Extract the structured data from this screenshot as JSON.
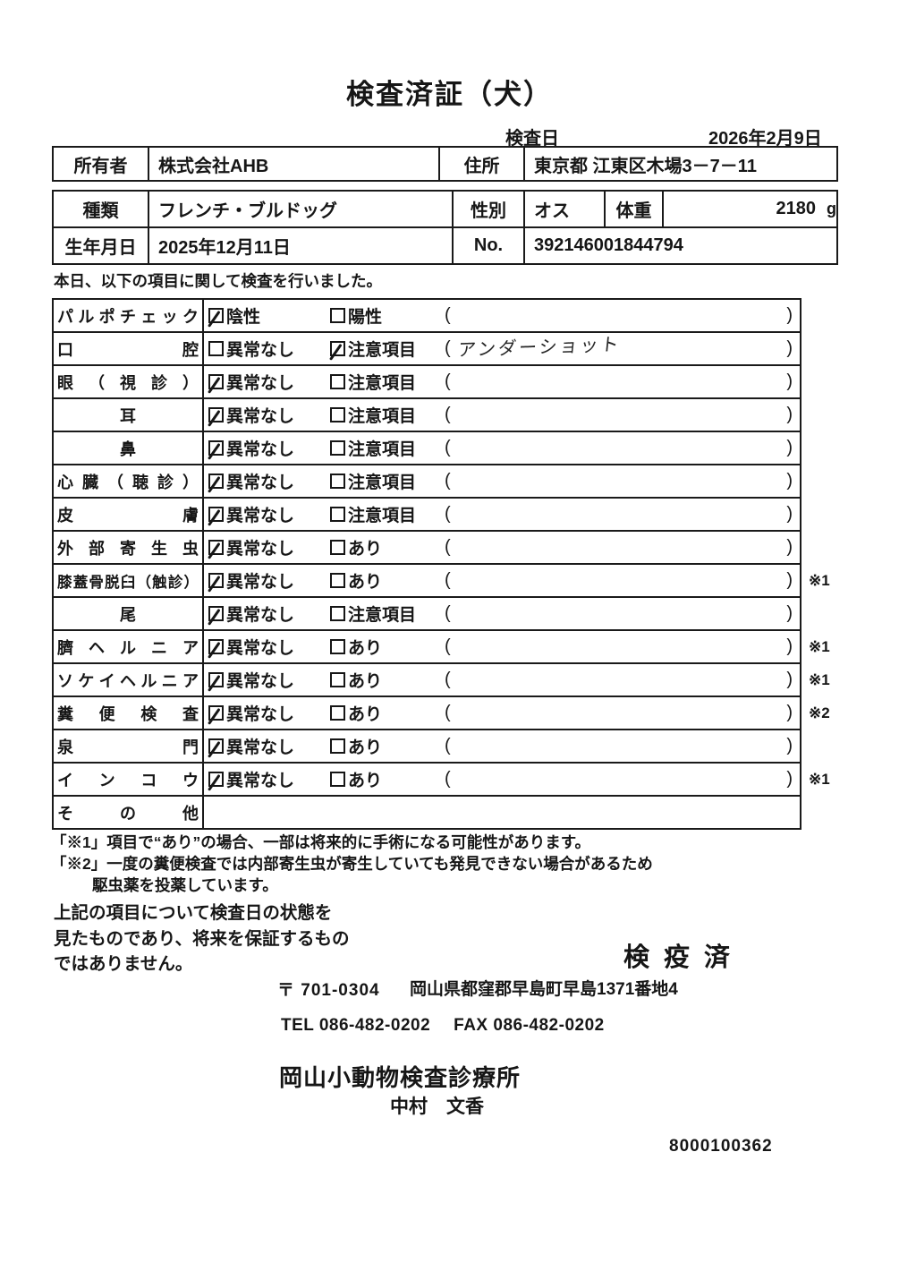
{
  "title": "検査済証（犬）",
  "header": {
    "inspection_date_label": "検査日",
    "inspection_date": "2026年2月9日",
    "owner_label": "所有者",
    "owner": "株式会社AHB",
    "address_label": "住所",
    "address": "東京都 江東区木場3－7－11",
    "breed_label": "種類",
    "breed": "フレンチ・ブルドッグ",
    "sex_label": "性別",
    "sex": "オス",
    "weight_label": "体重",
    "weight": "2180",
    "weight_unit": "g",
    "birthdate_label": "生年月日",
    "birthdate": "2025年12月11日",
    "no_label": "No.",
    "no": "392146001844794"
  },
  "intro": "本日、以下の項目に関して検査を行いました。",
  "checklist": {
    "paren_open": "(",
    "paren_close": ")",
    "rows": [
      {
        "label": "パルポチェック",
        "align": "justify",
        "opt1": "陰性",
        "checked1": true,
        "opt2": "陽性",
        "checked2": false,
        "note": "",
        "mark": ""
      },
      {
        "label": "口腔",
        "align": "justify",
        "opt1": "異常なし",
        "checked1": false,
        "opt2": "注意項目",
        "checked2": true,
        "note": "アンダーショット",
        "mark": ""
      },
      {
        "label": "眼（視診）",
        "align": "justify",
        "opt1": "異常なし",
        "checked1": true,
        "opt2": "注意項目",
        "checked2": false,
        "note": "",
        "mark": ""
      },
      {
        "label": "耳",
        "align": "center",
        "opt1": "異常なし",
        "checked1": true,
        "opt2": "注意項目",
        "checked2": false,
        "note": "",
        "mark": ""
      },
      {
        "label": "鼻",
        "align": "center",
        "opt1": "異常なし",
        "checked1": true,
        "opt2": "注意項目",
        "checked2": false,
        "note": "",
        "mark": ""
      },
      {
        "label": "心臓（聴診）",
        "align": "justify",
        "opt1": "異常なし",
        "checked1": true,
        "opt2": "注意項目",
        "checked2": false,
        "note": "",
        "mark": ""
      },
      {
        "label": "皮膚",
        "align": "justify",
        "opt1": "異常なし",
        "checked1": true,
        "opt2": "注意項目",
        "checked2": false,
        "note": "",
        "mark": ""
      },
      {
        "label": "外部寄生虫",
        "align": "justify",
        "opt1": "異常なし",
        "checked1": true,
        "opt2": "あり",
        "checked2": false,
        "note": "",
        "mark": ""
      },
      {
        "label": "膝蓋骨脱臼（触診）",
        "align": "justify",
        "opt1": "異常なし",
        "checked1": true,
        "opt2": "あり",
        "checked2": false,
        "note": "",
        "mark": "※1"
      },
      {
        "label": "尾",
        "align": "center",
        "opt1": "異常なし",
        "checked1": true,
        "opt2": "注意項目",
        "checked2": false,
        "note": "",
        "mark": ""
      },
      {
        "label": "臍ヘルニア",
        "align": "justify",
        "opt1": "異常なし",
        "checked1": true,
        "opt2": "あり",
        "checked2": false,
        "note": "",
        "mark": "※1"
      },
      {
        "label": "ソケイヘルニア",
        "align": "justify",
        "opt1": "異常なし",
        "checked1": true,
        "opt2": "あり",
        "checked2": false,
        "note": "",
        "mark": "※1"
      },
      {
        "label": "糞便検査",
        "align": "justify",
        "opt1": "異常なし",
        "checked1": true,
        "opt2": "あり",
        "checked2": false,
        "note": "",
        "mark": "※2"
      },
      {
        "label": "泉門",
        "align": "justify",
        "opt1": "異常なし",
        "checked1": true,
        "opt2": "あり",
        "checked2": false,
        "note": "",
        "mark": ""
      },
      {
        "label": "インコウ",
        "align": "justify",
        "opt1": "異常なし",
        "checked1": true,
        "opt2": "あり",
        "checked2": false,
        "note": "",
        "mark": "※1"
      },
      {
        "label": "その他",
        "align": "justify",
        "empty": true,
        "opt1": "",
        "checked1": false,
        "opt2": "",
        "checked2": false,
        "note": "",
        "mark": ""
      }
    ]
  },
  "footnotes": [
    "「※1」項目で“あり”の場合、一部は将来的に手術になる可能性があります。",
    "「※2」一度の糞便検査では内部寄生虫が寄生していても発見できない場合があるため",
    "駆虫薬を投薬しています。"
  ],
  "disclaimer": [
    "上記の項目について検査日の状態を",
    "見たものであり、将来を保証するもの",
    "ではありません。"
  ],
  "stamp": "検疫済",
  "footer": {
    "postal": "〒 701-0304",
    "address": "岡山県都窪郡早島町早島1371番地4",
    "tel": "TEL 086-482-0202",
    "fax": "FAX 086-482-0202",
    "clinic": "岡山小動物検査診療所",
    "veterinarian": "中村　文香",
    "serial": "8000100362"
  }
}
